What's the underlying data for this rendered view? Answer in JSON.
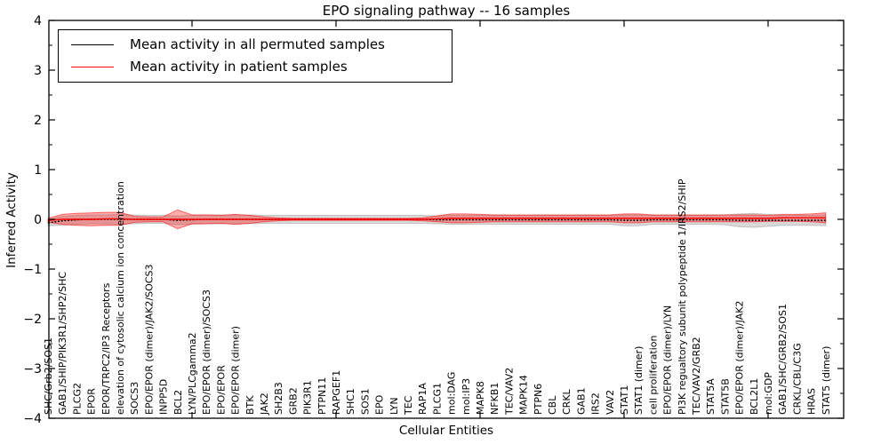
{
  "figure": {
    "title": "EPO signaling pathway -- 16 samples",
    "xlabel": "Cellular Entities",
    "ylabel": "Inferred Activity"
  },
  "legend": {
    "position": "upper left",
    "items": [
      {
        "label": "Mean activity in all permuted samples",
        "color": "#000000"
      },
      {
        "label": "Mean activity in patient samples",
        "color": "#ff0000"
      }
    ]
  },
  "chart_data": {
    "type": "line",
    "title": "EPO signaling pathway -- 16 samples",
    "xlabel": "Cellular Entities",
    "ylabel": "Inferred Activity",
    "ylim": [
      -4,
      4
    ],
    "y_major_ticks": [
      -4,
      -3,
      -2,
      -1,
      0,
      1,
      2,
      3,
      4
    ],
    "y_minor_tick_step": 0.5,
    "x_major_tick_indices": [
      10,
      20,
      30,
      40,
      50
    ],
    "grid": false,
    "legend_position": "upper left",
    "colors": {
      "permuted_line": "#000000",
      "permuted_band": "rgba(120,120,120,0.28)",
      "patient_line": "#ff0000",
      "patient_band": "rgba(255,0,0,0.32)",
      "patient_band_edge": "rgba(255,0,0,0.55)"
    },
    "categories": [
      "SHC/Grb2/SOS1",
      "GAB1/SHIP/PIK3R1/SHP2/SHC",
      "PLCG2",
      "EPOR",
      "EPOR/TRPC2/IP3 Receptors",
      "elevation of cytosolic calcium ion concentration",
      "SOCS3",
      "EPO/EPOR (dimer)/JAK2/SOCS3",
      "INPP5D",
      "BCL2",
      "LYN/PLCgamma2",
      "EPO/EPOR (dimer)/SOCS3",
      "EPO/EPOR",
      "EPO/EPOR (dimer)",
      "BTK",
      "JAK2",
      "SH2B3",
      "GRB2",
      "PIK3R1",
      "PTPN11",
      "RAPGEF1",
      "SHC1",
      "SOS1",
      "EPO",
      "LYN",
      "TEC",
      "RAP1A",
      "PLCG1",
      "mol:DAG",
      "mol:IP3",
      "MAPK8",
      "NFKB1",
      "TEC/VAV2",
      "MAPK14",
      "PTPN6",
      "CBL",
      "CRKL",
      "GAB1",
      "IRS2",
      "VAV2",
      "STAT1",
      "STAT1 (dimer)",
      "cell proliferation",
      "EPO/EPOR (dimer)/LYN",
      "PI3K regualtory subunit polypeptide 1/IRS2/SHIP",
      "TEC/VAV2/GRB2",
      "STAT5A",
      "STAT5B",
      "EPO/EPOR (dimer)/JAK2",
      "BCL2L1",
      "mol:GDP",
      "GAB1/SHC/GRB2/SOS1",
      "CRKL/CBL/C3G",
      "HRAS",
      "STAT5 (dimer)"
    ],
    "series": [
      {
        "name": "Mean activity in all permuted samples",
        "mean": [
          -0.07,
          -0.03,
          -0.01,
          0,
          0,
          0,
          0,
          0,
          0,
          -0.02,
          -0.01,
          0,
          0,
          0,
          0,
          0,
          0,
          0,
          0,
          0,
          0,
          0,
          0,
          0,
          0,
          0,
          0,
          -0.01,
          -0.01,
          -0.01,
          -0.01,
          -0.01,
          -0.01,
          -0.01,
          -0.01,
          -0.01,
          -0.01,
          -0.01,
          -0.01,
          -0.01,
          -0.02,
          -0.02,
          -0.01,
          -0.01,
          -0.01,
          -0.01,
          -0.01,
          -0.01,
          -0.02,
          -0.02,
          -0.02,
          -0.02,
          -0.02,
          -0.02,
          -0.02
        ],
        "std": [
          0.06,
          0.09,
          0.09,
          0.09,
          0.09,
          0.1,
          0.09,
          0.08,
          0.08,
          0.09,
          0.09,
          0.09,
          0.09,
          0.09,
          0.09,
          0.08,
          0.08,
          0.08,
          0.08,
          0.08,
          0.08,
          0.08,
          0.08,
          0.08,
          0.08,
          0.08,
          0.08,
          0.08,
          0.09,
          0.09,
          0.09,
          0.09,
          0.09,
          0.09,
          0.09,
          0.09,
          0.09,
          0.09,
          0.09,
          0.09,
          0.11,
          0.11,
          0.09,
          0.09,
          0.09,
          0.09,
          0.09,
          0.1,
          0.13,
          0.14,
          0.12,
          0.1,
          0.1,
          0.1,
          0.11
        ]
      },
      {
        "name": "Mean activity in patient samples",
        "mean": [
          -0.02,
          0,
          0,
          0,
          0.01,
          0.01,
          0,
          0,
          0,
          0,
          0,
          0,
          0,
          0,
          0,
          0,
          0,
          0,
          0,
          0,
          0,
          0,
          0,
          0,
          0,
          0,
          0,
          0.01,
          0.02,
          0.02,
          0.02,
          0.02,
          0.02,
          0.02,
          0.02,
          0.02,
          0.02,
          0.02,
          0.02,
          0.02,
          0.02,
          0.02,
          0.02,
          0.02,
          0.02,
          0.02,
          0.02,
          0.02,
          0.02,
          0.02,
          0.02,
          0.03,
          0.03,
          0.03,
          0.03
        ],
        "std": [
          0.04,
          0.1,
          0.12,
          0.13,
          0.13,
          0.13,
          0.06,
          0.05,
          0.05,
          0.19,
          0.09,
          0.09,
          0.08,
          0.1,
          0.08,
          0.05,
          0.03,
          0.02,
          0.02,
          0.02,
          0.02,
          0.02,
          0.02,
          0.02,
          0.02,
          0.02,
          0.03,
          0.06,
          0.09,
          0.09,
          0.08,
          0.07,
          0.07,
          0.07,
          0.07,
          0.07,
          0.07,
          0.07,
          0.07,
          0.07,
          0.09,
          0.09,
          0.07,
          0.07,
          0.07,
          0.07,
          0.07,
          0.07,
          0.07,
          0.07,
          0.06,
          0.07,
          0.07,
          0.08,
          0.1
        ]
      }
    ]
  }
}
